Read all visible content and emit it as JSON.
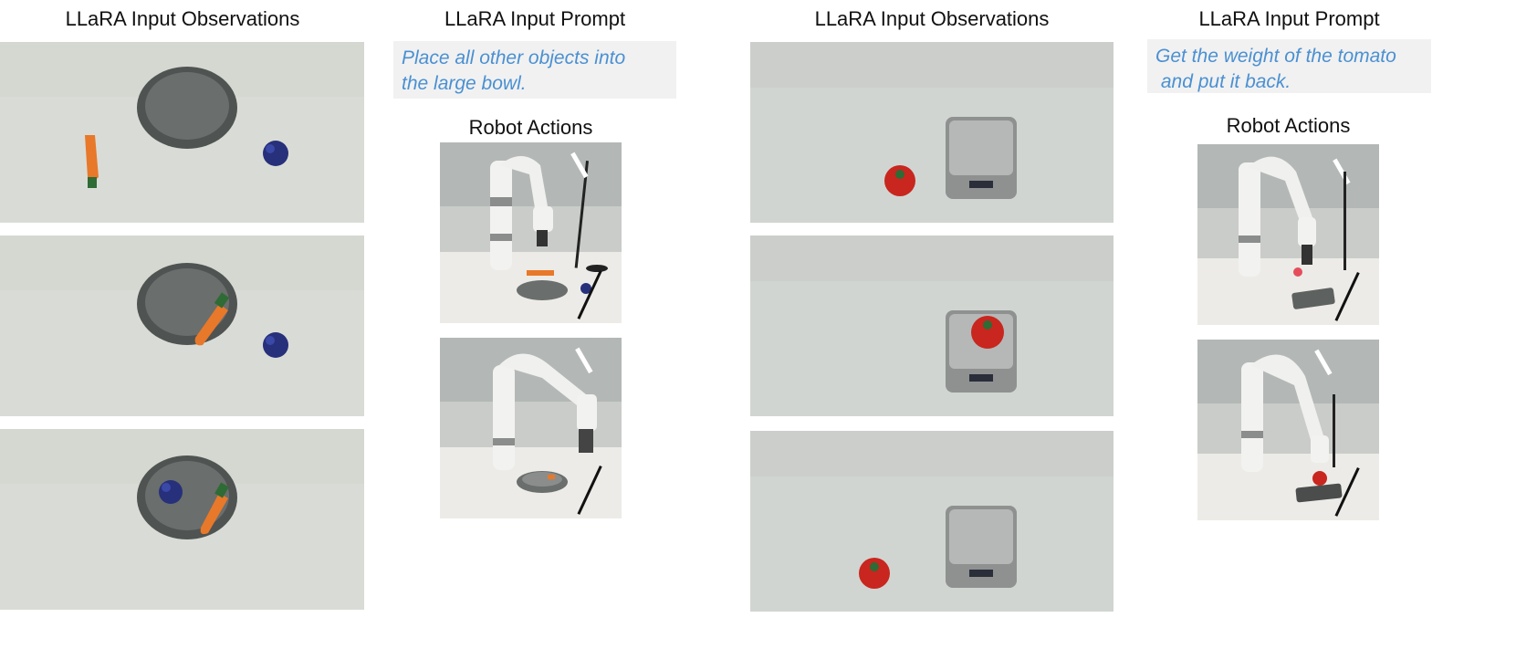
{
  "left": {
    "observations_title": "LLaRA Input Observations",
    "prompt_title": "LLaRA Input Prompt",
    "prompt_lines": [
      "Place all other objects into",
      "the large bowl."
    ],
    "actions_title": "Robot Actions",
    "observation_images": [
      {
        "depicts": "grey bowl, carrot left, blue grapes right"
      },
      {
        "depicts": "carrot inside bowl, blue grapes right"
      },
      {
        "depicts": "carrot and blue grapes inside bowl"
      }
    ],
    "action_images": [
      {
        "depicts": "robot arm holding carrot above table"
      },
      {
        "depicts": "robot arm placing carrot into bowl"
      }
    ]
  },
  "right": {
    "observations_title": "LLaRA Input Observations",
    "prompt_title": "LLaRA Input Prompt",
    "prompt_lines": [
      "Get the weight of the tomato",
      " and put it back."
    ],
    "actions_title": "Robot Actions",
    "observation_images": [
      {
        "depicts": "tomato left of kitchen scale"
      },
      {
        "depicts": "tomato on kitchen scale"
      },
      {
        "depicts": "tomato back left of kitchen scale"
      }
    ],
    "action_images": [
      {
        "depicts": "robot arm above kitchen scale"
      },
      {
        "depicts": "robot arm placing tomato on scale"
      }
    ]
  },
  "colors": {
    "prompt_text": "#4a90d2",
    "prompt_bg": "#f1f1f1",
    "table_surface": "#d9dcd6",
    "bowl": "#5d615f",
    "carrot": "#e8782a",
    "grapes": "#27307a",
    "tomato": "#c8261e",
    "scale": "#9a9c9b"
  }
}
